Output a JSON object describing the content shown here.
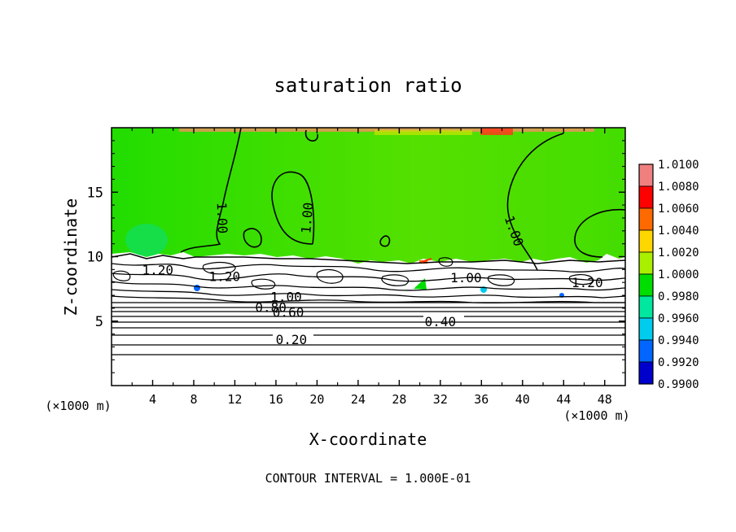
{
  "chart_data": {
    "type": "heatmap",
    "title": "saturation ratio",
    "xlabel": "X-coordinate",
    "ylabel": "Z-coordinate",
    "x_unit": "(×1000 m)",
    "y_unit": "(×1000 m)",
    "xlim": [
      0,
      50
    ],
    "ylim": [
      0,
      20
    ],
    "x_ticks": [
      4,
      8,
      12,
      16,
      20,
      24,
      28,
      32,
      36,
      40,
      44,
      48
    ],
    "y_ticks": [
      5,
      10,
      15
    ],
    "colorbar": {
      "levels": [
        "1.0100",
        "1.0080",
        "1.0060",
        "1.0040",
        "1.0020",
        "1.0000",
        "0.9980",
        "0.9960",
        "0.9940",
        "0.9920",
        "0.9900"
      ],
      "colors": [
        "#f08080",
        "#ff0000",
        "#ff6a00",
        "#ffd700",
        "#aaee00",
        "#00dd00",
        "#00e8a0",
        "#00ccee",
        "#0066ff",
        "#0000cc",
        "#2a0090"
      ]
    },
    "field_color": "#22dd00",
    "contour_labels": [
      {
        "text": "1.00",
        "x": 10.8,
        "z": 13.0,
        "angle": 88
      },
      {
        "text": "1.00",
        "x": 19.0,
        "z": 13.0,
        "angle": -85
      },
      {
        "text": "1.00",
        "x": 39.2,
        "z": 12.0,
        "angle": 70
      },
      {
        "text": "1.20",
        "x": 4.5,
        "z": 9.0,
        "angle": 0
      },
      {
        "text": "1.20",
        "x": 11.0,
        "z": 8.5,
        "angle": 0
      },
      {
        "text": "1.00",
        "x": 34.5,
        "z": 8.4,
        "angle": 0
      },
      {
        "text": "1.20",
        "x": 46.3,
        "z": 8.0,
        "angle": 0
      },
      {
        "text": "1.00",
        "x": 17.0,
        "z": 6.9,
        "angle": 0
      },
      {
        "text": "0.80",
        "x": 15.5,
        "z": 6.1,
        "angle": 0
      },
      {
        "text": "0.60",
        "x": 17.2,
        "z": 5.7,
        "angle": 0
      },
      {
        "text": "0.40",
        "x": 32.0,
        "z": 5.0,
        "angle": 0
      },
      {
        "text": "0.20",
        "x": 17.5,
        "z": 3.6,
        "angle": 0
      }
    ],
    "annotation": "CONTOUR INTERVAL = 1.000E-01"
  }
}
